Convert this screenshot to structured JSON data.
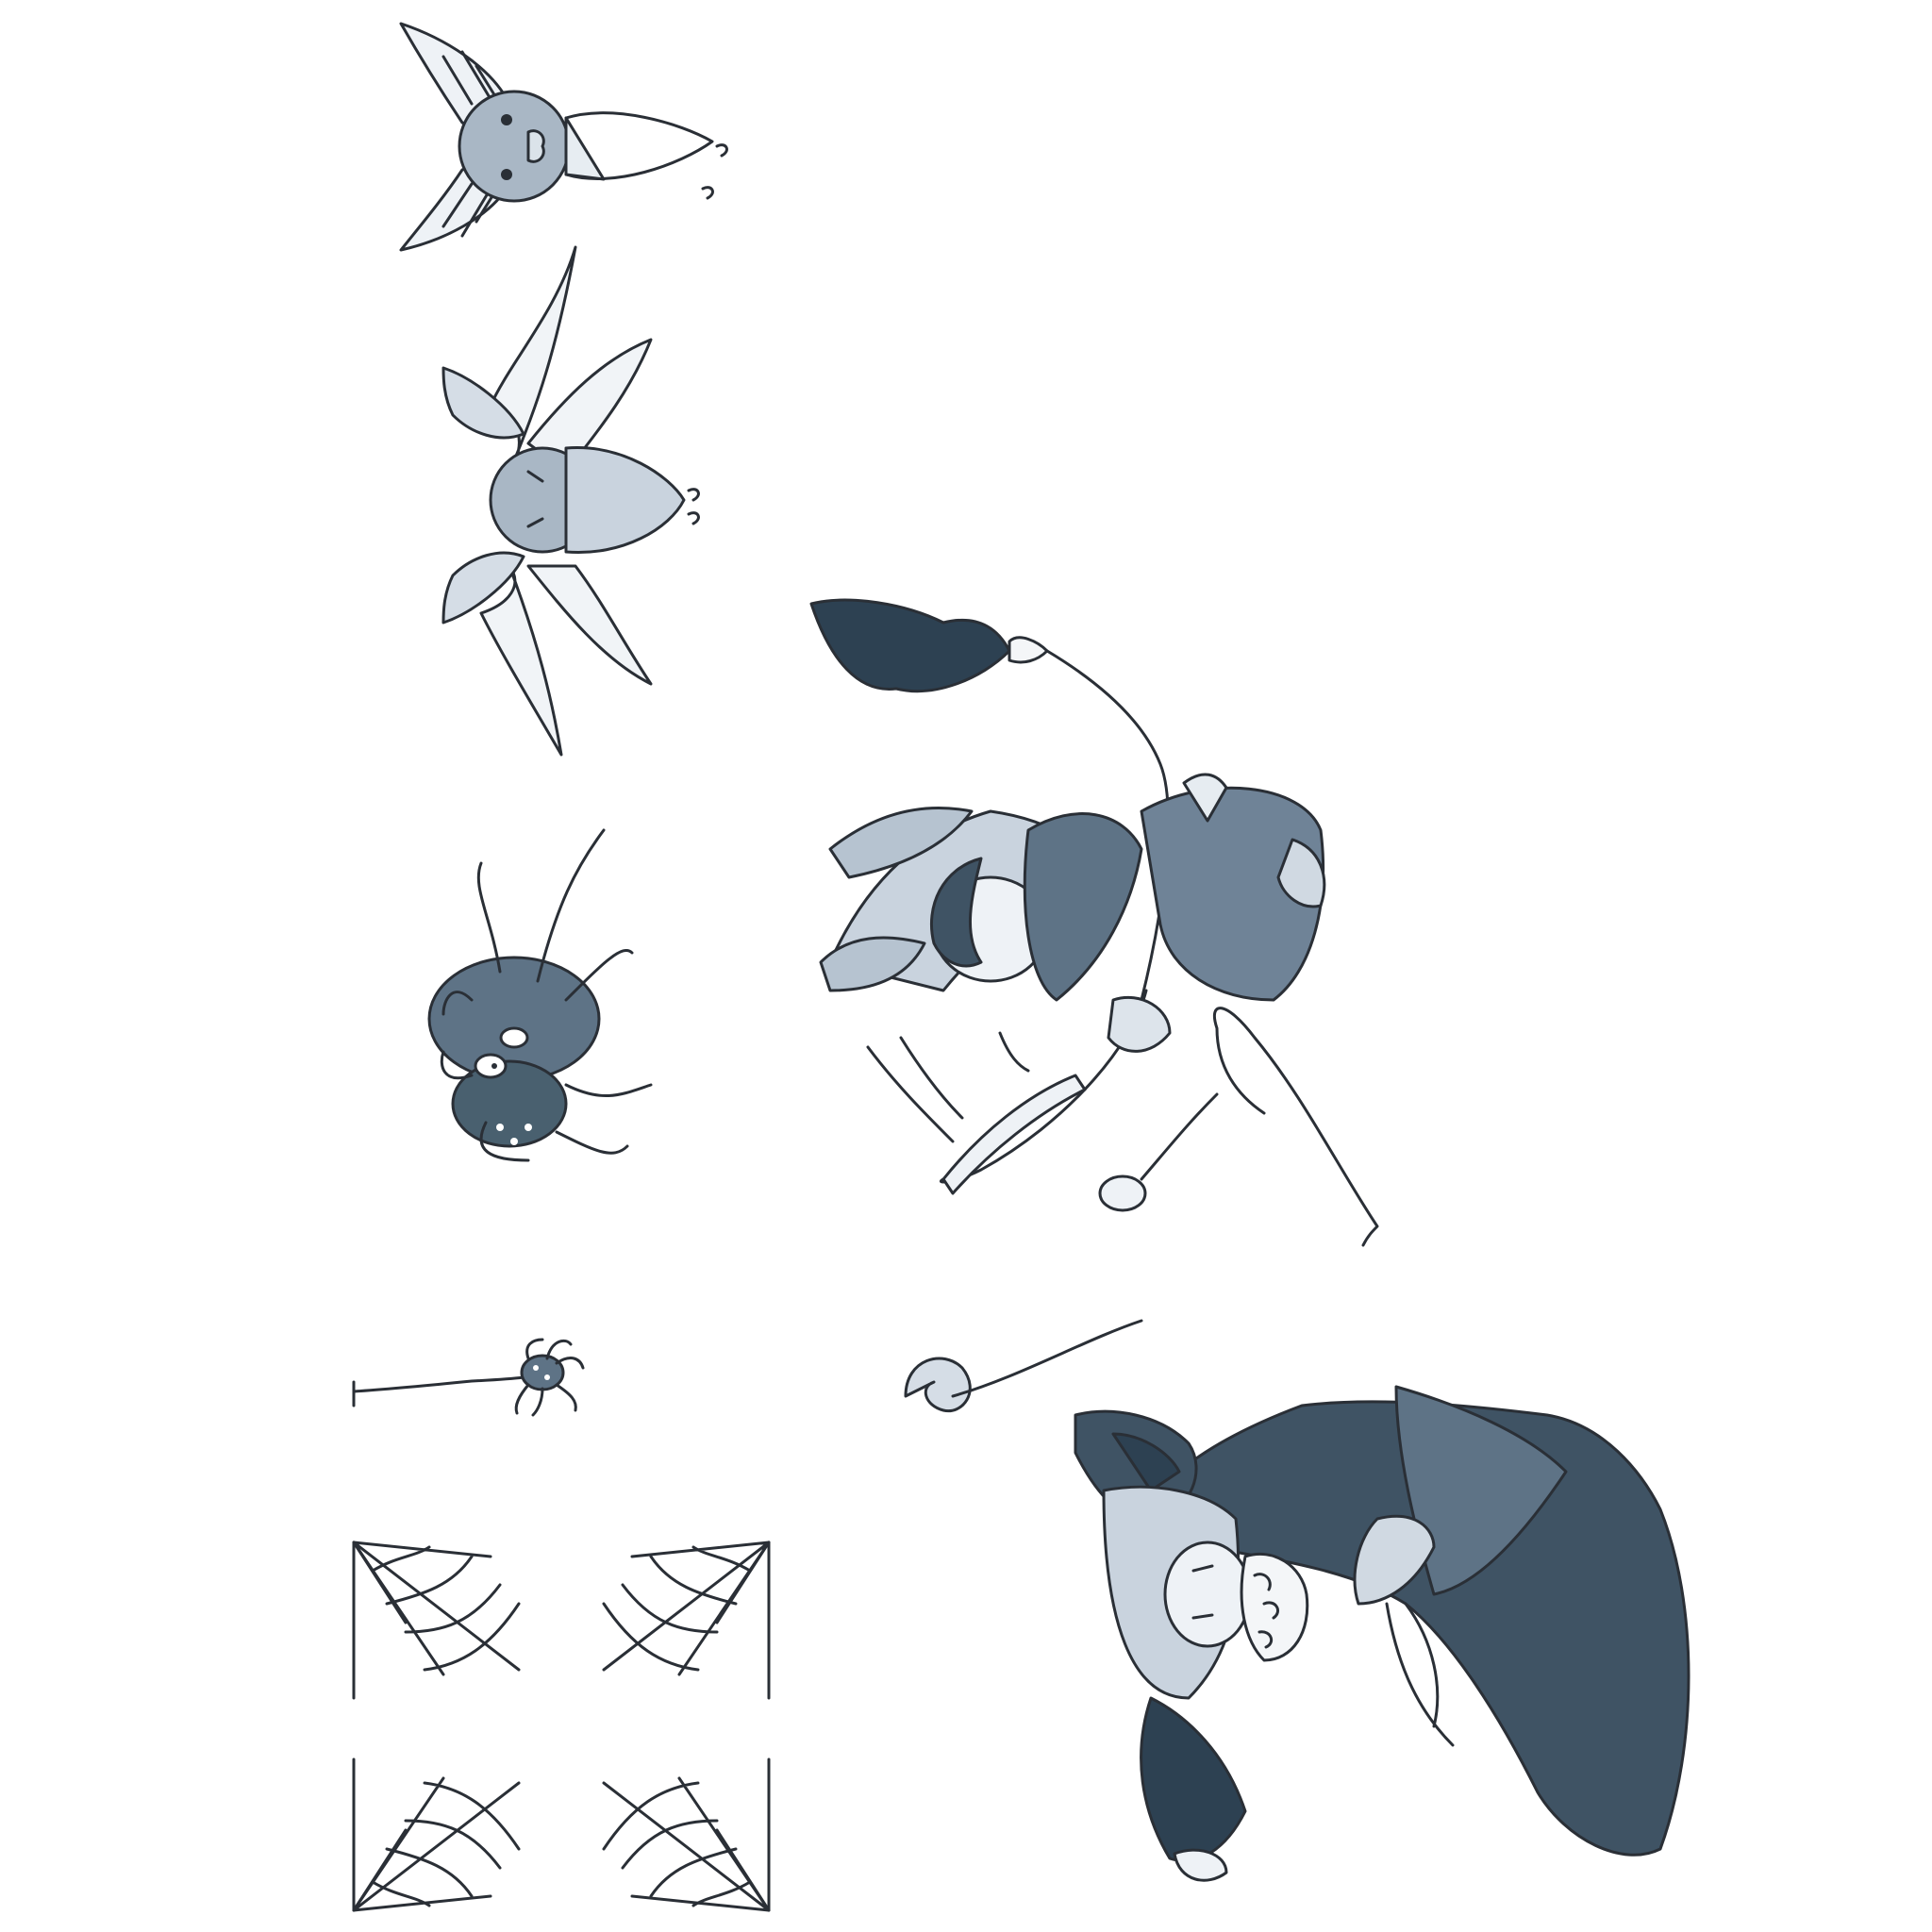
{
  "palette": {
    "background": "#ffffff",
    "ink": "#2a2f36",
    "light_wash": "#c9d3de",
    "mid_wash": "#8fa0b2",
    "dark_wash": "#3f5364",
    "deep_wash": "#2d4152"
  },
  "elements": [
    {
      "name": "small-bat",
      "icon": "bat-icon"
    },
    {
      "name": "flying-bat",
      "icon": "bat-icon"
    },
    {
      "name": "spider-creature",
      "icon": "spider-icon"
    },
    {
      "name": "hanging-spider",
      "icon": "spider-icon"
    },
    {
      "name": "corner-cobweb",
      "icon": "cobweb-icon"
    },
    {
      "name": "witch-on-broom",
      "icon": "witch-icon"
    },
    {
      "name": "wizard-with-staff",
      "icon": "wizard-icon"
    }
  ]
}
